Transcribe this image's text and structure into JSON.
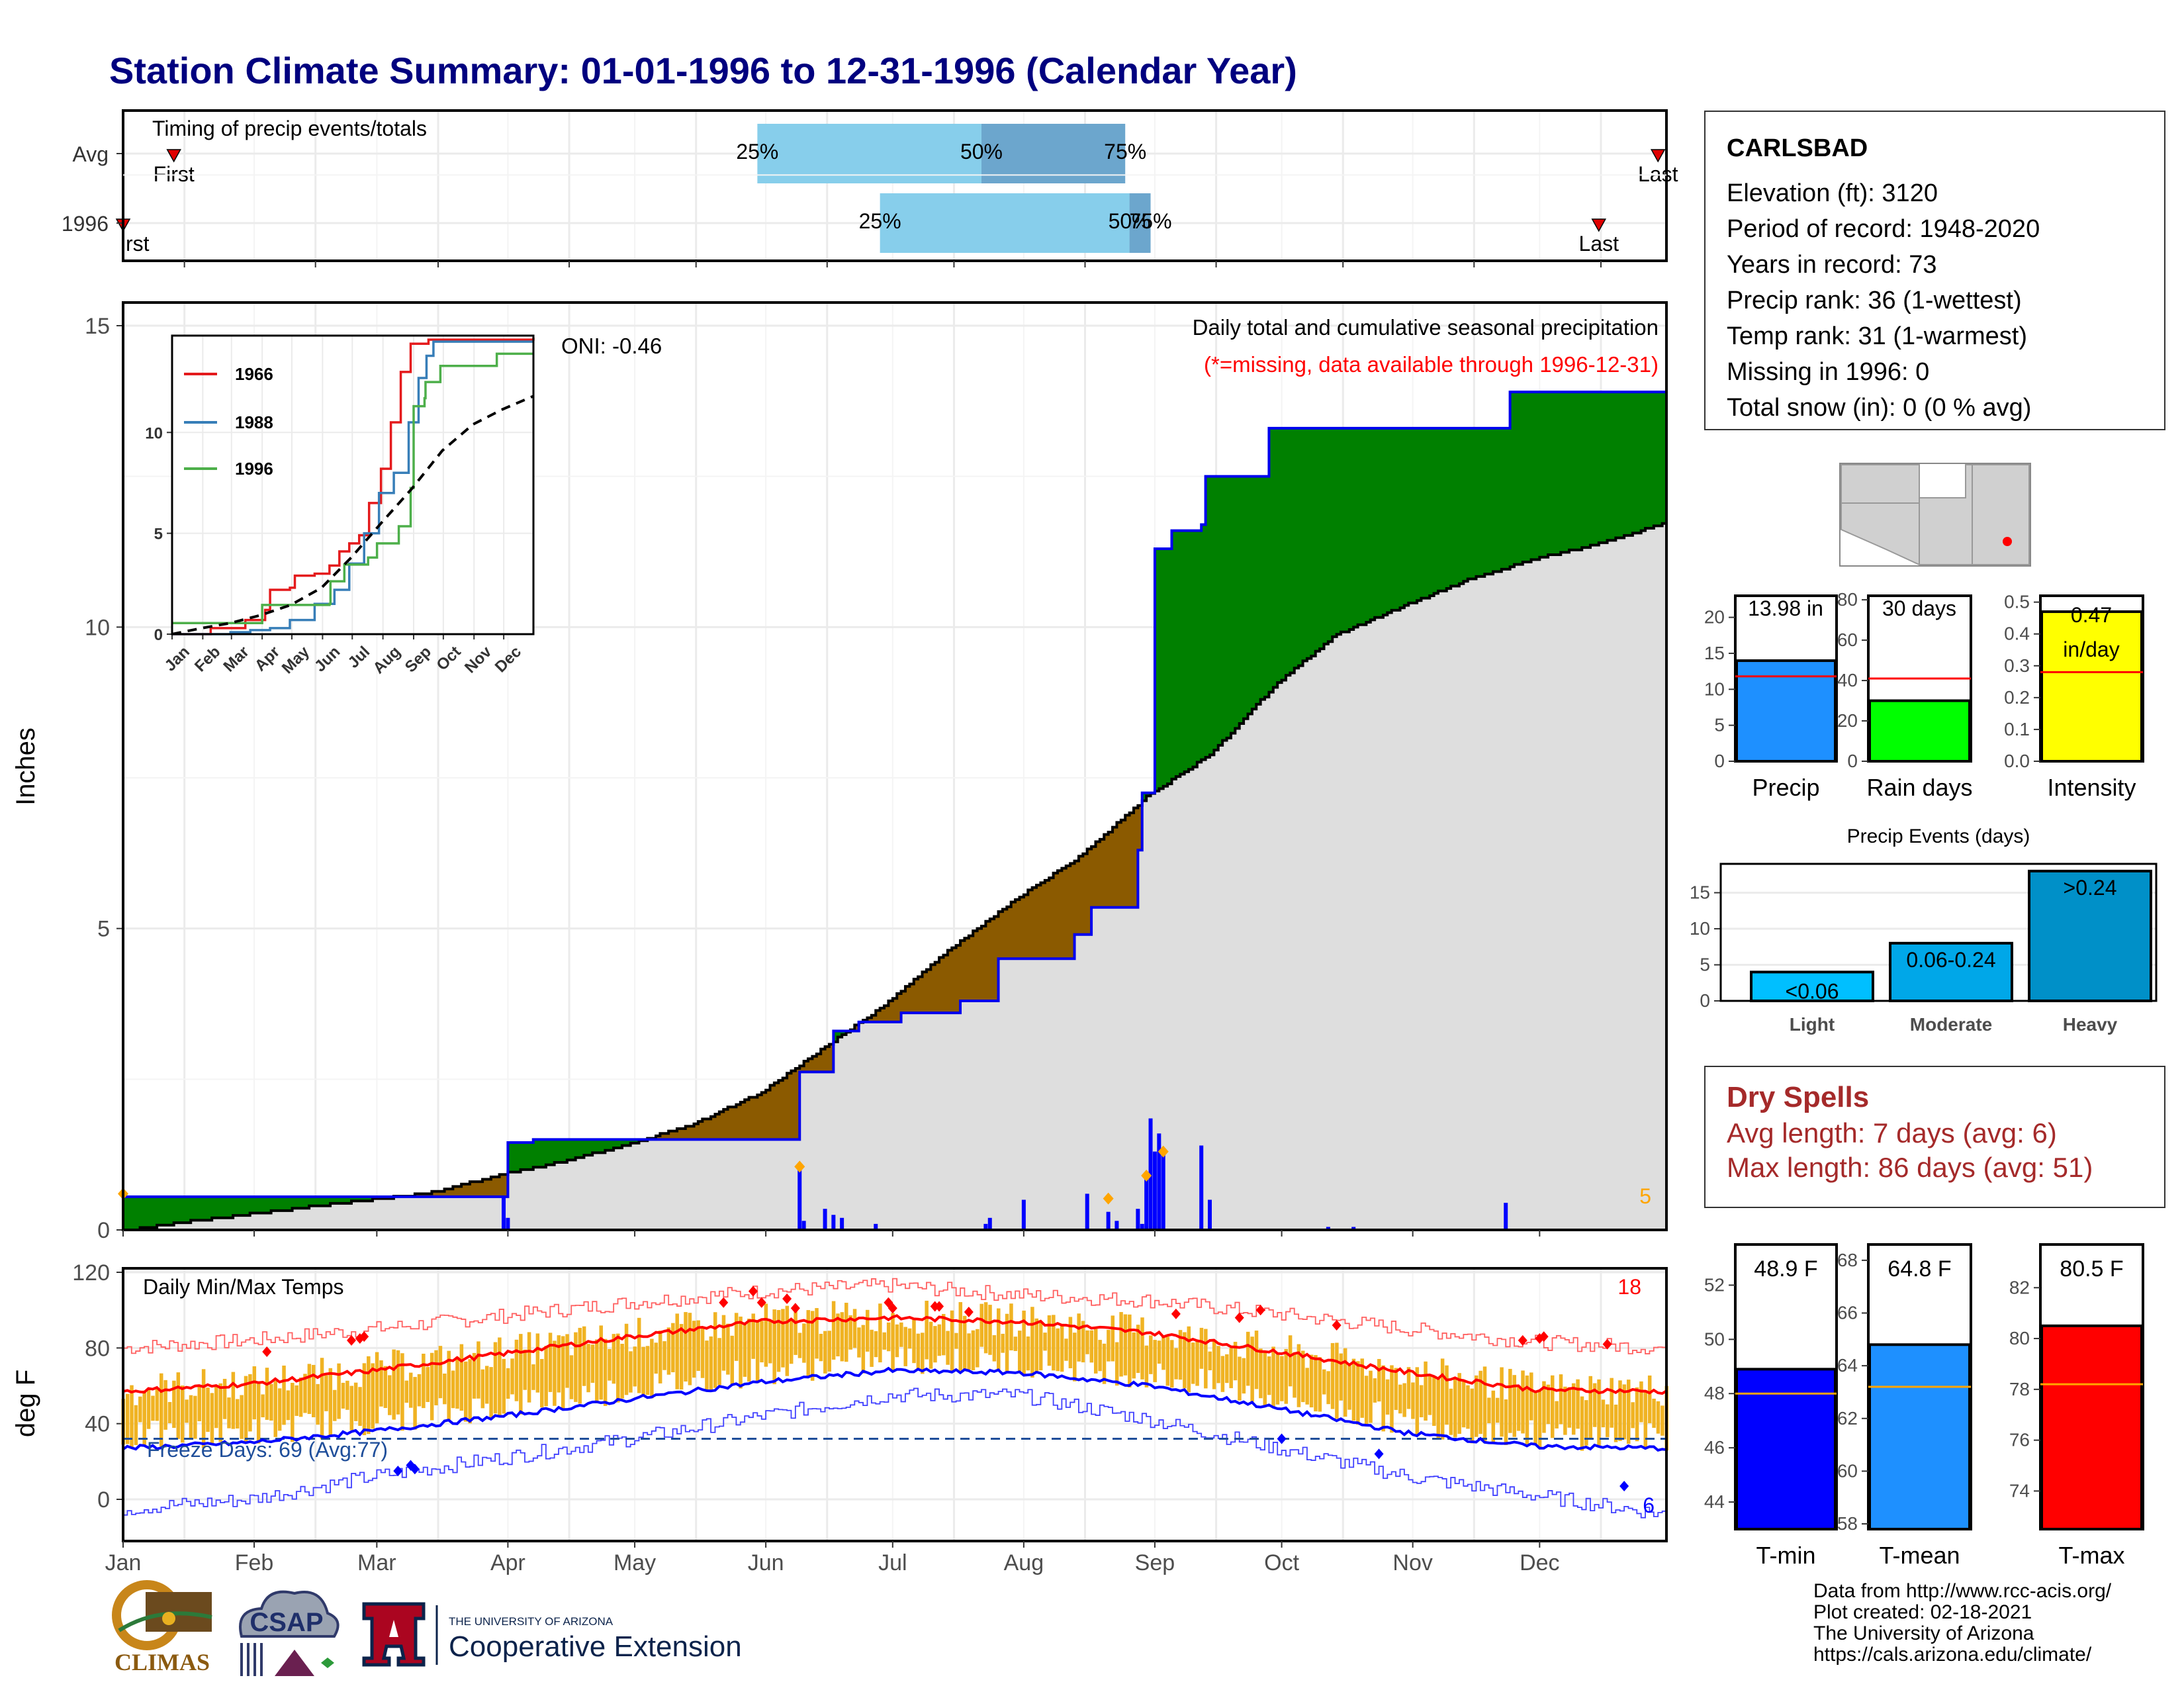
{
  "title": "Station Climate Summary: 01-01-1996 to 12-31-1996 (Calendar Year)",
  "colors": {
    "title": "#00007f",
    "precip_bar": "#1e90ff",
    "raindays_bar": "#00ff00",
    "intensity_bar": "#ffff00",
    "avg_line": "#ff0000",
    "tmin": "#0000ff",
    "tmean": "#1e90ff",
    "tmax": "#ff0000",
    "above_avg": "#008000",
    "below_avg": "#8b5a00",
    "normal_fill": "#dedede",
    "cum_line": "#0000ee",
    "temp_bar": "#f0b323"
  },
  "station": {
    "name": "CARLSBAD",
    "lines": [
      "Elevation (ft): 3120",
      "Period of record: 1948-2020",
      "Years in record: 73",
      "Precip rank: 36 (1-wettest)",
      "Temp rank: 31 (1-warmest)",
      "Missing in 1996: 0",
      "Total snow (in): 0 (0 % avg)"
    ]
  },
  "dry_spells": {
    "title": "Dry Spells",
    "avg": "Avg length: 7 days (avg: 6)",
    "max": "Max length: 86 days (avg: 51)"
  },
  "footer": [
    "Data from http://www.rcc-acis.org/",
    "Plot created: 02-18-2021",
    "The University of Arizona",
    "https://cals.arizona.edu/climate/"
  ],
  "logos": {
    "climas": "CLIMAS",
    "csap": "CSAP",
    "ua_small": "THE UNIVERSITY OF ARIZONA",
    "ua_big": "Cooperative Extension"
  },
  "chart_data": [
    {
      "id": "timing",
      "type": "bar",
      "title": "Timing of precip events/totals",
      "rows": [
        "Avg",
        "1996"
      ],
      "avg": {
        "first": "Jan 13",
        "q25": "May 30",
        "q50": "Jul 22",
        "q75": "Aug 25",
        "last": "Dec 29"
      },
      "y1996": {
        "first": "Jan 1",
        "q25": "Jun 28",
        "q50": "Aug 26",
        "q75": "Aug 31",
        "last": "Dec 15"
      },
      "labels": {
        "first": "First",
        "last": "Last",
        "q25": "25%",
        "q50": "50%",
        "q75": "75%",
        "first_cut": "rst"
      },
      "months": [
        "Jan",
        "Feb",
        "Mar",
        "Apr",
        "May",
        "Jun",
        "Jul",
        "Aug",
        "Sep",
        "Oct",
        "Nov",
        "Dec"
      ]
    },
    {
      "id": "cumulative_precip",
      "type": "area",
      "title": "Daily total and cumulative seasonal precipitation",
      "subtitle": "(*=missing, data available through 1996-12-31)",
      "ylabel": "Inches",
      "ylim": [
        0,
        15
      ],
      "yticks": [
        0,
        5,
        10,
        15
      ],
      "oni": "ONI: -0.46",
      "corner_count": "5",
      "cum_1996": [
        [
          1,
          0.55
        ],
        [
          91,
          0.55
        ],
        [
          92,
          1.45
        ],
        [
          98,
          1.5
        ],
        [
          160,
          1.5
        ],
        [
          161,
          2.62
        ],
        [
          168,
          2.62
        ],
        [
          169,
          3.3
        ],
        [
          175,
          3.45
        ],
        [
          185,
          3.6
        ],
        [
          199,
          3.8
        ],
        [
          208,
          4.5
        ],
        [
          226,
          4.9
        ],
        [
          230,
          5.35
        ],
        [
          241,
          6.3
        ],
        [
          242,
          7.25
        ],
        [
          245,
          11.3
        ],
        [
          249,
          11.6
        ],
        [
          251,
          11.6
        ],
        [
          256,
          11.7
        ],
        [
          257,
          12.5
        ],
        [
          271,
          12.5
        ],
        [
          272,
          13.3
        ],
        [
          328,
          13.3
        ],
        [
          329,
          13.9
        ],
        [
          366,
          13.9
        ]
      ],
      "normal_cum": [
        [
          1,
          0
        ],
        [
          15,
          0.15
        ],
        [
          31,
          0.28
        ],
        [
          45,
          0.4
        ],
        [
          60,
          0.52
        ],
        [
          75,
          0.65
        ],
        [
          91,
          0.95
        ],
        [
          105,
          1.15
        ],
        [
          121,
          1.45
        ],
        [
          135,
          1.75
        ],
        [
          152,
          2.3
        ],
        [
          166,
          3.0
        ],
        [
          182,
          3.8
        ],
        [
          196,
          4.65
        ],
        [
          213,
          5.55
        ],
        [
          227,
          6.2
        ],
        [
          243,
          7.2
        ],
        [
          258,
          7.9
        ],
        [
          274,
          9.1
        ],
        [
          288,
          9.9
        ],
        [
          305,
          10.4
        ],
        [
          319,
          10.8
        ],
        [
          335,
          11.15
        ],
        [
          350,
          11.4
        ],
        [
          366,
          11.75
        ]
      ],
      "daily": [
        [
          91,
          0.55
        ],
        [
          92,
          0.2
        ],
        [
          161,
          1.1
        ],
        [
          162,
          0.15
        ],
        [
          167,
          0.35
        ],
        [
          169,
          0.25
        ],
        [
          171,
          0.2
        ],
        [
          179,
          0.1
        ],
        [
          205,
          0.1
        ],
        [
          206,
          0.2
        ],
        [
          214,
          0.5
        ],
        [
          229,
          0.6
        ],
        [
          234,
          0.3
        ],
        [
          236,
          0.15
        ],
        [
          241,
          0.35
        ],
        [
          242,
          0.1
        ],
        [
          243,
          0.9
        ],
        [
          244,
          1.85
        ],
        [
          245,
          1.3
        ],
        [
          246,
          1.6
        ],
        [
          247,
          1.3
        ],
        [
          256,
          1.4
        ],
        [
          258,
          0.5
        ],
        [
          328,
          0.45
        ],
        [
          286,
          0.05
        ],
        [
          292,
          0.05
        ]
      ],
      "extremes": [
        [
          1,
          0.6
        ],
        [
          161,
          1.05
        ],
        [
          234,
          0.52
        ],
        [
          243,
          0.9
        ],
        [
          247,
          1.3
        ]
      ]
    },
    {
      "id": "inset_cumulative",
      "type": "line",
      "xticks": [
        "Jan",
        "Feb",
        "Mar",
        "Apr",
        "May",
        "Jun",
        "Jul",
        "Aug",
        "Sep",
        "Oct",
        "Nov",
        "Dec"
      ],
      "yticks": [
        0,
        5,
        10
      ],
      "ylim": [
        0,
        14.8
      ],
      "series": [
        {
          "name": "1966",
          "color": "#e41a1c",
          "points": [
            [
              1,
              0
            ],
            [
              40,
              0.3
            ],
            [
              75,
              0.7
            ],
            [
              95,
              1.2
            ],
            [
              100,
              2.2
            ],
            [
              120,
              2.3
            ],
            [
              125,
              2.9
            ],
            [
              145,
              3.0
            ],
            [
              160,
              3.4
            ],
            [
              170,
              4.1
            ],
            [
              180,
              4.5
            ],
            [
              190,
              4.9
            ],
            [
              200,
              6.5
            ],
            [
              212,
              8.2
            ],
            [
              222,
              10.5
            ],
            [
              232,
              13.0
            ],
            [
              242,
              14.4
            ],
            [
              260,
              14.6
            ],
            [
              366,
              14.7
            ]
          ]
        },
        {
          "name": "1988",
          "color": "#377eb8",
          "points": [
            [
              1,
              0
            ],
            [
              60,
              0.1
            ],
            [
              80,
              0.2
            ],
            [
              100,
              0.3
            ],
            [
              120,
              0.7
            ],
            [
              145,
              1.5
            ],
            [
              165,
              2.2
            ],
            [
              180,
              3.5
            ],
            [
              195,
              5.0
            ],
            [
              210,
              7.0
            ],
            [
              225,
              8.0
            ],
            [
              240,
              10.5
            ],
            [
              250,
              12.7
            ],
            [
              258,
              13.8
            ],
            [
              265,
              14.5
            ],
            [
              366,
              14.5
            ]
          ]
        },
        {
          "name": "1996",
          "color": "#4daf4a",
          "points": [
            [
              1,
              0.55
            ],
            [
              91,
              0.55
            ],
            [
              92,
              1.45
            ],
            [
              160,
              1.5
            ],
            [
              161,
              2.62
            ],
            [
              175,
              3.45
            ],
            [
              199,
              3.8
            ],
            [
              208,
              4.5
            ],
            [
              230,
              5.35
            ],
            [
              242,
              7.25
            ],
            [
              245,
              11.3
            ],
            [
              256,
              11.7
            ],
            [
              257,
              12.5
            ],
            [
              272,
              13.3
            ],
            [
              329,
              13.9
            ],
            [
              366,
              13.9
            ]
          ]
        },
        {
          "name": "",
          "color": "#000000",
          "dashed": true,
          "points": [
            [
              1,
              0
            ],
            [
              31,
              0.3
            ],
            [
              60,
              0.55
            ],
            [
              91,
              0.95
            ],
            [
              121,
              1.45
            ],
            [
              152,
              2.3
            ],
            [
              182,
              3.8
            ],
            [
              213,
              5.55
            ],
            [
              243,
              7.2
            ],
            [
              274,
              9.1
            ],
            [
              305,
              10.4
            ],
            [
              335,
              11.15
            ],
            [
              366,
              11.8
            ]
          ]
        }
      ]
    },
    {
      "id": "daily_temps",
      "type": "bar",
      "title": "Daily Min/Max Temps",
      "ylabel": "deg F",
      "ylim": [
        -20,
        120
      ],
      "yticks": [
        0,
        40,
        80,
        120
      ],
      "freeze_text": "Freeze Days: 69 (Avg:77)",
      "freeze_line": 32,
      "hot_count": "18",
      "cold_count": "6",
      "normal_max": [
        [
          1,
          57
        ],
        [
          31,
          61
        ],
        [
          60,
          68
        ],
        [
          91,
          77
        ],
        [
          121,
          86
        ],
        [
          152,
          94
        ],
        [
          182,
          96
        ],
        [
          213,
          94
        ],
        [
          244,
          88
        ],
        [
          274,
          78
        ],
        [
          305,
          67
        ],
        [
          335,
          58
        ],
        [
          366,
          57
        ]
      ],
      "normal_min": [
        [
          1,
          27
        ],
        [
          31,
          30
        ],
        [
          60,
          36
        ],
        [
          91,
          44
        ],
        [
          121,
          53
        ],
        [
          152,
          62
        ],
        [
          182,
          68
        ],
        [
          213,
          67
        ],
        [
          244,
          60
        ],
        [
          274,
          48
        ],
        [
          305,
          35
        ],
        [
          335,
          28
        ],
        [
          366,
          27
        ]
      ],
      "record_max": [
        [
          1,
          80
        ],
        [
          31,
          84
        ],
        [
          60,
          90
        ],
        [
          91,
          97
        ],
        [
          121,
          104
        ],
        [
          152,
          110
        ],
        [
          182,
          113
        ],
        [
          213,
          108
        ],
        [
          244,
          105
        ],
        [
          274,
          98
        ],
        [
          305,
          90
        ],
        [
          335,
          83
        ],
        [
          366,
          80
        ]
      ],
      "record_min": [
        [
          1,
          -5
        ],
        [
          31,
          0
        ],
        [
          60,
          12
        ],
        [
          91,
          22
        ],
        [
          121,
          32
        ],
        [
          152,
          44
        ],
        [
          182,
          55
        ],
        [
          213,
          55
        ],
        [
          244,
          42
        ],
        [
          274,
          27
        ],
        [
          305,
          12
        ],
        [
          335,
          2
        ],
        [
          366,
          -8
        ]
      ],
      "months": [
        "Jan",
        "Feb",
        "Mar",
        "Apr",
        "May",
        "Jun",
        "Jul",
        "Aug",
        "Sep",
        "Oct",
        "Nov",
        "Dec"
      ]
    },
    {
      "id": "precip_total",
      "type": "bar",
      "categories": [
        "Precip"
      ],
      "values": [
        13.98
      ],
      "avg": 11.8,
      "label": "13.98 in",
      "ylim": [
        0,
        23
      ],
      "yticks": [
        0,
        5,
        10,
        15,
        20
      ]
    },
    {
      "id": "rain_days",
      "type": "bar",
      "categories": [
        "Rain days"
      ],
      "values": [
        30
      ],
      "avg": 41,
      "label": "30 days",
      "ylim": [
        0,
        82
      ],
      "yticks": [
        0,
        20,
        40,
        60,
        80
      ]
    },
    {
      "id": "intensity",
      "type": "bar",
      "categories": [
        "Intensity"
      ],
      "values": [
        0.47
      ],
      "avg": 0.28,
      "label": "0.47",
      "label2": "in/day",
      "ylim": [
        0,
        0.52
      ],
      "yticks": [
        "0.0",
        "0.1",
        "0.2",
        "0.3",
        "0.4",
        "0.5"
      ]
    },
    {
      "id": "precip_events",
      "type": "bar",
      "title": "Precip Events (days)",
      "categories": [
        "Light",
        "Moderate",
        "Heavy"
      ],
      "values": [
        4,
        8,
        18
      ],
      "labels": [
        "<0.06",
        "0.06-0.24",
        ">0.24"
      ],
      "ylim": [
        0,
        19
      ],
      "yticks": [
        0,
        5,
        10,
        15
      ]
    },
    {
      "id": "t_min",
      "type": "bar",
      "categories": [
        "T-min"
      ],
      "values": [
        48.9
      ],
      "avg": 48.0,
      "label": "48.9 F",
      "ylim": [
        43,
        53.5
      ],
      "yticks": [
        44,
        46,
        48,
        50,
        52
      ]
    },
    {
      "id": "t_mean",
      "type": "bar",
      "categories": [
        "T-mean"
      ],
      "values": [
        64.8
      ],
      "avg": 63.2,
      "label": "64.8 F",
      "ylim": [
        57.8,
        68.6
      ],
      "yticks": [
        58,
        60,
        62,
        64,
        66,
        68
      ]
    },
    {
      "id": "t_max",
      "type": "bar",
      "categories": [
        "T-max"
      ],
      "values": [
        80.5
      ],
      "avg": 78.2,
      "label": "80.5 F",
      "ylim": [
        72.5,
        83.7
      ],
      "yticks": [
        74,
        76,
        78,
        80,
        82
      ]
    }
  ]
}
